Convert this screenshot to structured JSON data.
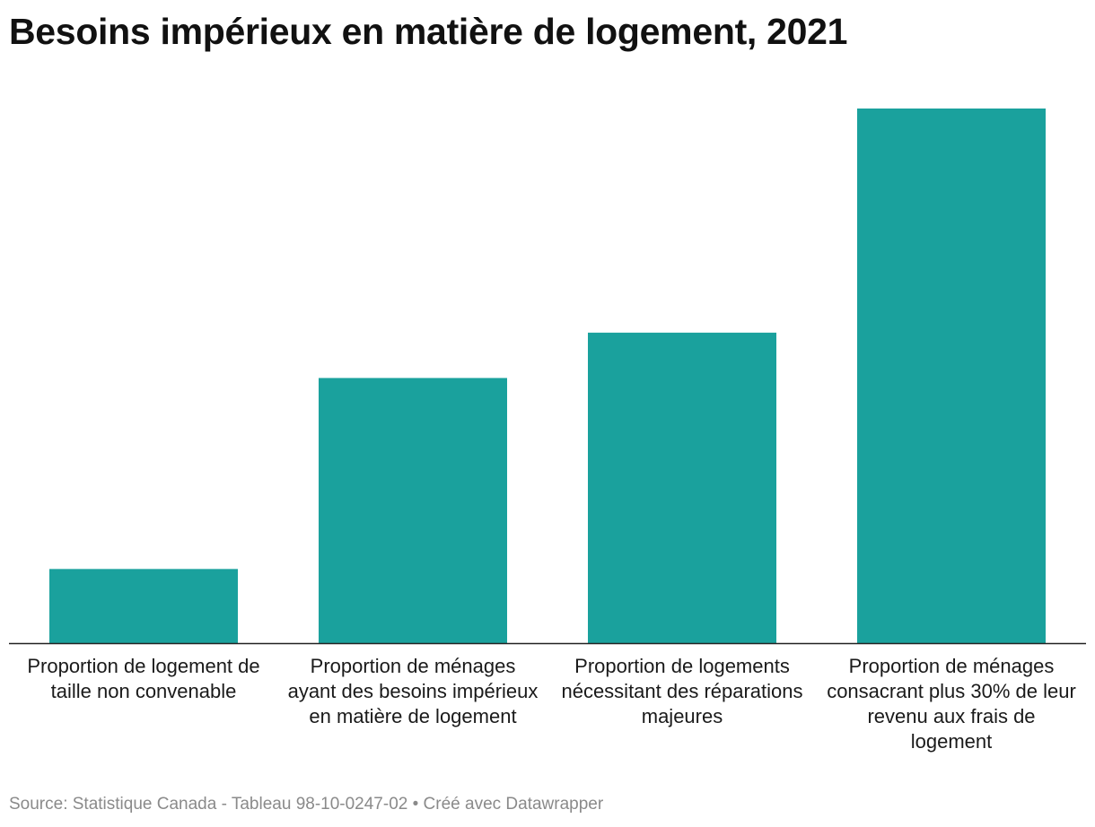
{
  "chart_data": {
    "type": "bar",
    "title": "Besoins impérieux en matière de logement, 2021",
    "categories": [
      "Proportion de logement de taille non convenable",
      "Proportion de ménages ayant des besoins impérieux en matière de logement",
      "Proportion de logements nécessitant des réparations majeures",
      "Proportion de ménages consacrant plus 30% de leur revenu aux frais de logement"
    ],
    "values": [
      8.5,
      30.4,
      35.6,
      61.3
    ],
    "ylim": [
      0,
      65
    ],
    "xlabel": "",
    "ylabel": "",
    "grid": false,
    "legend": "none",
    "bar_color": "#1aa19d",
    "axis_color": "#222222"
  },
  "footer": {
    "source": "Source: Statistique Canada - Tableau 98-10-0247-02 • Créé avec Datawrapper"
  }
}
